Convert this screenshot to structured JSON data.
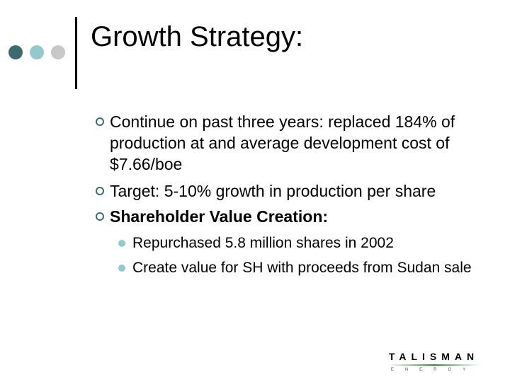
{
  "title": "Growth Strategy:",
  "decor_colors": [
    "#3d6b6e",
    "#93c9cc",
    "#c8c8c8"
  ],
  "bullets": [
    "Continue on past three years: replaced 184% of production at and average development cost of $7.66/boe",
    "Target: 5-10% growth in production per share",
    "Shareholder Value Creation:"
  ],
  "sub_bullets": [
    "Repurchased 5.8 million shares in 2002",
    "Create value for SH with proceeds from Sudan sale"
  ],
  "logo": {
    "name": "TALISMAN",
    "sub": "ENERGY"
  }
}
